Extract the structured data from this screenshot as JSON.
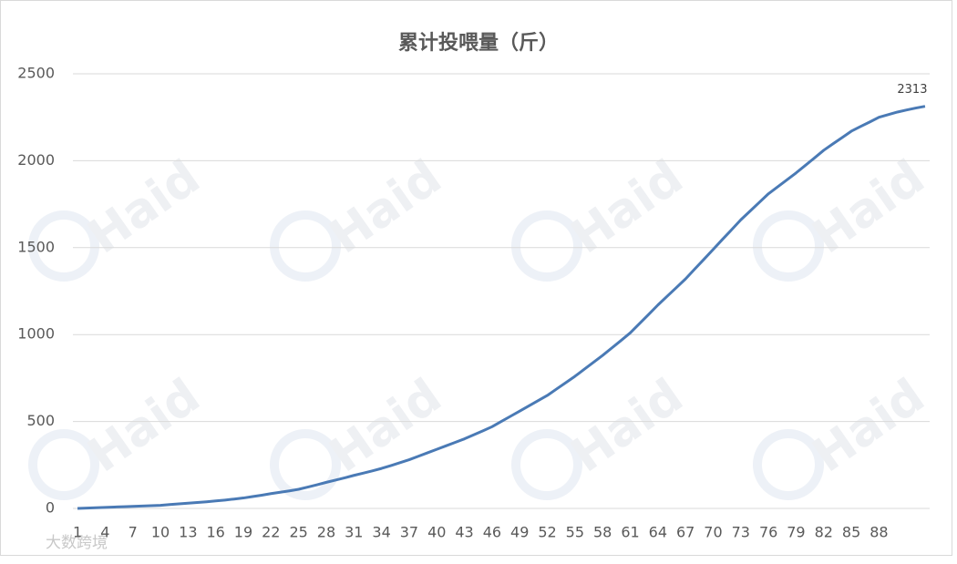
{
  "chart_data": {
    "type": "line",
    "title": "累计投喂量（斤）",
    "categories": [
      1,
      null,
      null,
      4,
      null,
      null,
      7,
      null,
      null,
      10,
      null,
      null,
      13,
      null,
      null,
      16,
      null,
      null,
      19,
      null,
      null,
      22,
      null,
      null,
      25,
      null,
      null,
      28,
      null,
      null,
      31,
      null,
      null,
      34,
      null,
      null,
      37,
      null,
      null,
      40,
      null,
      null,
      43,
      null,
      null,
      46,
      null,
      null,
      49,
      null,
      null,
      52,
      null,
      null,
      55,
      null,
      null,
      58,
      null,
      null,
      61,
      null,
      null,
      64,
      null,
      null,
      67,
      null,
      null,
      70,
      null,
      null,
      73,
      null,
      null,
      76,
      null,
      null,
      79,
      null,
      null,
      82,
      null,
      null,
      85,
      null,
      null,
      88,
      null,
      null,
      null,
      null,
      null
    ],
    "values": [
      0,
      2,
      4,
      6,
      8,
      10,
      12,
      14,
      16,
      18,
      22,
      26,
      30,
      34,
      38,
      43,
      48,
      54,
      60,
      68,
      76,
      85,
      93,
      101,
      110,
      123,
      136,
      150,
      163,
      176,
      190,
      203,
      216,
      230,
      246,
      263,
      280,
      300,
      320,
      340,
      360,
      380,
      400,
      423,
      446,
      470,
      500,
      530,
      560,
      590,
      620,
      650,
      687,
      723,
      760,
      800,
      840,
      880,
      923,
      966,
      1010,
      1063,
      1116,
      1170,
      1220,
      1270,
      1320,
      1377,
      1433,
      1490,
      1547,
      1603,
      1660,
      1710,
      1760,
      1810,
      1850,
      1890,
      1930,
      1973,
      2016,
      2060,
      2097,
      2133,
      2170,
      2197,
      2223,
      2250,
      2265,
      2280,
      2292,
      2303,
      2313
    ],
    "color": "#4a7ab5",
    "data_label": "last",
    "ylim": [
      0,
      2500
    ],
    "yticks": [
      0,
      500,
      1000,
      1500,
      2000,
      2500
    ],
    "grid": true
  },
  "watermark": "Haid",
  "credit": "大数跨境"
}
